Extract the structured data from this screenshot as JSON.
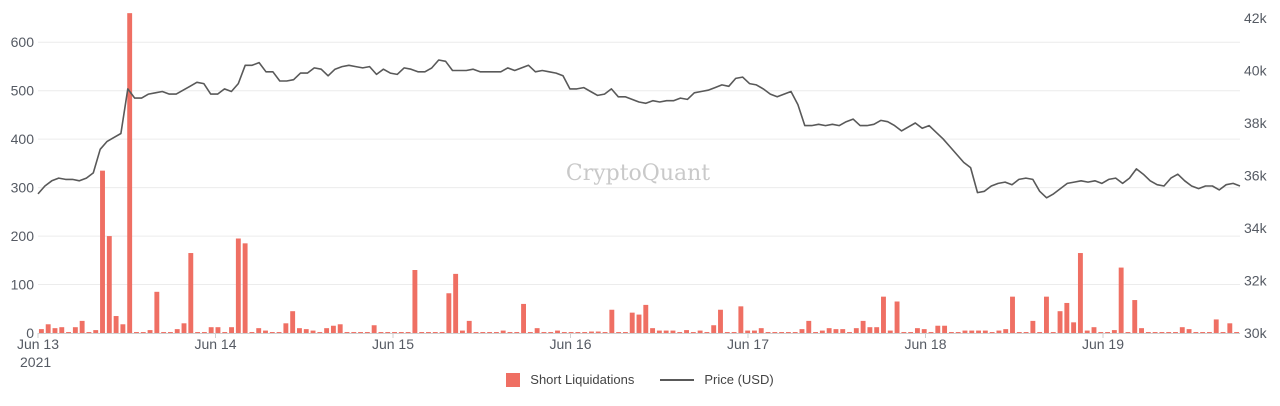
{
  "colors": {
    "bar": "#ef6f63",
    "line": "#595959"
  },
  "watermark": "CryptoQuant",
  "legend": {
    "bars_label": "Short Liquidations",
    "line_label": "Price (USD)"
  },
  "chart_data": {
    "type": "bar",
    "title": "",
    "xlabel": "",
    "ylabel": "",
    "x_ticks": [
      "Jun 13",
      "Jun 14",
      "Jun 15",
      "Jun 16",
      "Jun 17",
      "Jun 18",
      "Jun 19"
    ],
    "x_year": "2021",
    "y_left_ticks": [
      "0",
      "100",
      "200",
      "300",
      "400",
      "500",
      "600"
    ],
    "y_right_ticks": [
      "30k",
      "32k",
      "34k",
      "36k",
      "38k",
      "40k",
      "42k"
    ],
    "ylim_left": [
      0,
      650
    ],
    "ylim_right": [
      30000,
      42000
    ],
    "grid": true,
    "legend_position": "bottom",
    "series": [
      {
        "name": "Short Liquidations",
        "type": "bar",
        "axis": "left",
        "values": [
          8,
          18,
          10,
          12,
          2,
          12,
          25,
          2,
          6,
          335,
          200,
          35,
          18,
          660,
          2,
          2,
          6,
          85,
          2,
          2,
          8,
          20,
          165,
          2,
          2,
          12,
          12,
          2,
          12,
          195,
          185,
          2,
          10,
          5,
          2,
          2,
          20,
          45,
          10,
          8,
          5,
          2,
          10,
          15,
          18,
          2,
          2,
          2,
          2,
          16,
          2,
          2,
          2,
          2,
          2,
          130,
          2,
          2,
          2,
          2,
          82,
          122,
          5,
          25,
          2,
          2,
          2,
          2,
          5,
          2,
          2,
          60,
          2,
          10,
          2,
          2,
          5,
          2,
          2,
          2,
          2,
          3,
          3,
          2,
          48,
          2,
          2,
          42,
          38,
          58,
          10,
          5,
          5,
          5,
          2,
          6,
          2,
          5,
          2,
          16,
          48,
          2,
          2,
          55,
          5,
          5,
          10,
          2,
          2,
          2,
          2,
          2,
          8,
          25,
          2,
          5,
          10,
          8,
          8,
          2,
          10,
          25,
          12,
          12,
          75,
          5,
          65,
          2,
          2,
          10,
          8,
          2,
          15,
          15,
          2,
          2,
          5,
          5,
          5,
          5,
          2,
          5,
          8,
          75,
          2,
          2,
          25,
          2,
          75,
          2,
          45,
          62,
          22,
          165,
          5,
          12,
          2,
          2,
          6,
          135,
          2,
          68,
          10,
          2,
          2,
          2,
          2,
          2,
          12,
          8,
          2,
          2,
          2,
          28,
          2,
          20,
          2
        ]
      },
      {
        "name": "Price (USD)",
        "type": "line",
        "axis": "right",
        "values": [
          35300,
          35600,
          35800,
          35900,
          35850,
          35850,
          35800,
          35900,
          36100,
          37000,
          37300,
          37450,
          37600,
          39300,
          38950,
          38950,
          39100,
          39150,
          39200,
          39100,
          39100,
          39250,
          39400,
          39550,
          39500,
          39100,
          39100,
          39300,
          39200,
          39500,
          40200,
          40200,
          40300,
          39950,
          39950,
          39600,
          39600,
          39650,
          39900,
          39900,
          40100,
          40050,
          39800,
          40050,
          40150,
          40200,
          40150,
          40100,
          40150,
          39850,
          40050,
          39900,
          39850,
          40100,
          40050,
          39950,
          39950,
          40100,
          40400,
          40350,
          40000,
          40000,
          40000,
          40050,
          39950,
          39950,
          39950,
          39950,
          40100,
          40000,
          40100,
          40200,
          39950,
          40000,
          39950,
          39900,
          39800,
          39300,
          39300,
          39350,
          39200,
          39050,
          39100,
          39300,
          39000,
          39000,
          38900,
          38800,
          38750,
          38850,
          38800,
          38850,
          38850,
          38950,
          38900,
          39150,
          39200,
          39250,
          39350,
          39450,
          39400,
          39700,
          39750,
          39500,
          39450,
          39300,
          39100,
          39000,
          39100,
          39200,
          38700,
          37900,
          37900,
          37950,
          37900,
          37950,
          37900,
          38050,
          38150,
          37900,
          37900,
          37950,
          38100,
          38050,
          37900,
          37700,
          37850,
          38000,
          37800,
          37900,
          37650,
          37400,
          37100,
          36800,
          36500,
          36300,
          35350,
          35400,
          35600,
          35700,
          35750,
          35650,
          35850,
          35900,
          35850,
          35400,
          35150,
          35300,
          35500,
          35700,
          35750,
          35800,
          35750,
          35800,
          35700,
          35850,
          35900,
          35700,
          35900,
          36250,
          36050,
          35800,
          35650,
          35600,
          35900,
          36050,
          35800,
          35600,
          35500,
          35600,
          35600,
          35450,
          35650,
          35700,
          35600
        ]
      }
    ]
  }
}
